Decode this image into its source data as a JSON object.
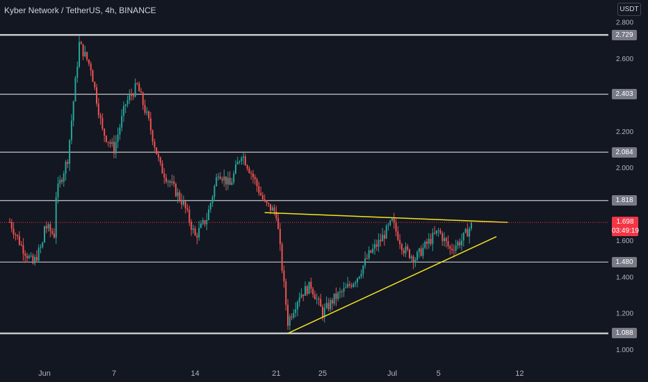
{
  "header": {
    "title": "Kyber Network / TetherUS, 4h, BINANCE",
    "currency": "USDT"
  },
  "last_price": {
    "value": "1.698",
    "countdown": "03:49:19"
  },
  "colors": {
    "background": "#131722",
    "up": "#26a69a",
    "down": "#ef5350",
    "trendline": "#f5e61e",
    "level": "#c8c8c8",
    "last_price": "#f23645"
  },
  "chart_data": {
    "type": "candlestick",
    "title": "Kyber Network / TetherUS, 4h, BINANCE",
    "xlabel": "",
    "ylabel": "",
    "x_tick_labels": [
      "Jun",
      "7",
      "14",
      "21",
      "25",
      "Jul",
      "5",
      "12"
    ],
    "y_tick_labels": [
      "2.800",
      "2.600",
      "2.200",
      "2.000",
      "1.600",
      "1.400",
      "1.200",
      "1.000"
    ],
    "ylim": [
      0.95,
      2.83
    ],
    "x_range_days": [
      "2021-05-29",
      "2021-07-16"
    ],
    "grid": false,
    "horizontal_levels": [
      {
        "label": "2.729",
        "value": 2.729
      },
      {
        "label": "2.403",
        "value": 2.403
      },
      {
        "label": "2.084",
        "value": 2.084
      },
      {
        "label": "1.818",
        "value": 1.818
      },
      {
        "label": "1.480",
        "value": 1.48
      },
      {
        "label": "1.088",
        "value": 1.088
      }
    ],
    "trendlines": [
      {
        "name": "resistance",
        "points": [
          [
            "2021-06-20",
            1.752
          ],
          [
            "2021-07-11",
            1.698
          ]
        ]
      },
      {
        "name": "support",
        "points": [
          [
            "2021-06-22",
            1.088
          ],
          [
            "2021-07-10",
            1.62
          ]
        ]
      }
    ],
    "close_path": [
      [
        "2021-05-29",
        1.7
      ],
      [
        "2021-05-30",
        1.57
      ],
      [
        "2021-05-31",
        1.47
      ],
      [
        "2021-06-01",
        1.6
      ],
      [
        "2021-06-01",
        1.68
      ],
      [
        "2021-06-02",
        1.62
      ],
      [
        "2021-06-02",
        1.85
      ],
      [
        "2021-06-03",
        2.05
      ],
      [
        "2021-06-04",
        2.68
      ],
      [
        "2021-06-05",
        2.55
      ],
      [
        "2021-06-06",
        2.2
      ],
      [
        "2021-06-07",
        2.1
      ],
      [
        "2021-06-08",
        2.35
      ],
      [
        "2021-06-09",
        2.45
      ],
      [
        "2021-06-10",
        2.25
      ],
      [
        "2021-06-11",
        2.0
      ],
      [
        "2021-06-12",
        1.9
      ],
      [
        "2021-06-13",
        1.8
      ],
      [
        "2021-06-14",
        1.62
      ],
      [
        "2021-06-15",
        1.72
      ],
      [
        "2021-06-16",
        1.98
      ],
      [
        "2021-06-17",
        1.9
      ],
      [
        "2021-06-18",
        2.08
      ],
      [
        "2021-06-19",
        1.95
      ],
      [
        "2021-06-20",
        1.8
      ],
      [
        "2021-06-21",
        1.75
      ],
      [
        "2021-06-22",
        1.15
      ],
      [
        "2021-06-23",
        1.3
      ],
      [
        "2021-06-24",
        1.35
      ],
      [
        "2021-06-25",
        1.2
      ],
      [
        "2021-06-26",
        1.28
      ],
      [
        "2021-06-27",
        1.33
      ],
      [
        "2021-06-28",
        1.4
      ],
      [
        "2021-06-29",
        1.52
      ],
      [
        "2021-06-30",
        1.6
      ],
      [
        "2021-07-01",
        1.7
      ],
      [
        "2021-07-02",
        1.55
      ],
      [
        "2021-07-03",
        1.5
      ],
      [
        "2021-07-04",
        1.58
      ],
      [
        "2021-07-05",
        1.65
      ],
      [
        "2021-07-06",
        1.55
      ],
      [
        "2021-07-07",
        1.6
      ],
      [
        "2021-07-08",
        1.698
      ]
    ]
  }
}
